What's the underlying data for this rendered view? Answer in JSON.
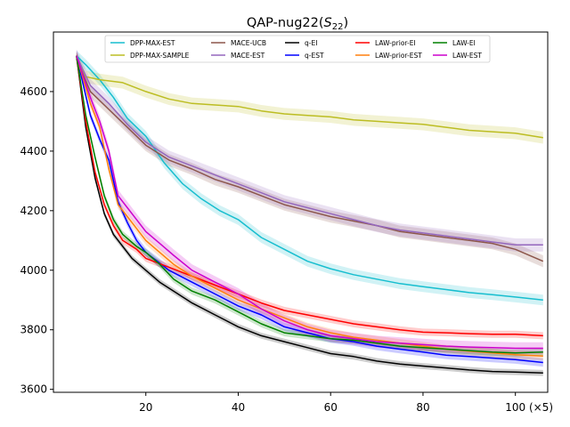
{
  "chart_data": {
    "type": "line",
    "title_main": "QAP-nug22(",
    "title_sym": "S",
    "title_sub": "22",
    "title_close": ")",
    "x_multiplier": "(×5)",
    "xlim": [
      0,
      107
    ],
    "ylim": [
      3590,
      4800
    ],
    "x_ticks": [
      20,
      40,
      60,
      80,
      100
    ],
    "y_ticks": [
      3600,
      3800,
      4000,
      4200,
      4400,
      4600
    ],
    "legend_loc": "top-center",
    "legend_cols": 5,
    "series": [
      {
        "name": "DPP-MAX-EST",
        "color": "#17becf",
        "band": 18,
        "points": [
          [
            5,
            4720
          ],
          [
            7,
            4690
          ],
          [
            10,
            4640
          ],
          [
            13,
            4580
          ],
          [
            16,
            4510
          ],
          [
            20,
            4450
          ],
          [
            24,
            4360
          ],
          [
            28,
            4290
          ],
          [
            32,
            4240
          ],
          [
            36,
            4200
          ],
          [
            40,
            4170
          ],
          [
            45,
            4110
          ],
          [
            50,
            4070
          ],
          [
            55,
            4030
          ],
          [
            60,
            4005
          ],
          [
            65,
            3985
          ],
          [
            70,
            3970
          ],
          [
            75,
            3955
          ],
          [
            80,
            3945
          ],
          [
            85,
            3935
          ],
          [
            90,
            3925
          ],
          [
            95,
            3918
          ],
          [
            100,
            3910
          ],
          [
            106,
            3900
          ]
        ]
      },
      {
        "name": "DPP-MAX-SAMPLE",
        "color": "#bcbd22",
        "band": 20,
        "points": [
          [
            5,
            4715
          ],
          [
            7,
            4650
          ],
          [
            10,
            4640
          ],
          [
            15,
            4630
          ],
          [
            20,
            4600
          ],
          [
            25,
            4575
          ],
          [
            30,
            4560
          ],
          [
            35,
            4555
          ],
          [
            40,
            4550
          ],
          [
            45,
            4535
          ],
          [
            50,
            4525
          ],
          [
            55,
            4520
          ],
          [
            60,
            4515
          ],
          [
            65,
            4505
          ],
          [
            70,
            4500
          ],
          [
            75,
            4495
          ],
          [
            80,
            4490
          ],
          [
            85,
            4480
          ],
          [
            90,
            4470
          ],
          [
            95,
            4465
          ],
          [
            100,
            4460
          ],
          [
            106,
            4445
          ]
        ]
      },
      {
        "name": "MACE-UCB",
        "color": "#8c564b",
        "band": 20,
        "points": [
          [
            5,
            4710
          ],
          [
            8,
            4600
          ],
          [
            12,
            4540
          ],
          [
            16,
            4480
          ],
          [
            20,
            4420
          ],
          [
            25,
            4370
          ],
          [
            30,
            4340
          ],
          [
            35,
            4305
          ],
          [
            40,
            4280
          ],
          [
            45,
            4250
          ],
          [
            50,
            4220
          ],
          [
            55,
            4200
          ],
          [
            60,
            4180
          ],
          [
            65,
            4165
          ],
          [
            70,
            4150
          ],
          [
            75,
            4130
          ],
          [
            80,
            4120
          ],
          [
            85,
            4110
          ],
          [
            90,
            4100
          ],
          [
            95,
            4090
          ],
          [
            100,
            4070
          ],
          [
            106,
            4030
          ]
        ]
      },
      {
        "name": "MACE-EST",
        "color": "#9467bd",
        "band": 22,
        "points": [
          [
            5,
            4720
          ],
          [
            8,
            4620
          ],
          [
            12,
            4560
          ],
          [
            16,
            4490
          ],
          [
            20,
            4430
          ],
          [
            25,
            4380
          ],
          [
            30,
            4350
          ],
          [
            35,
            4320
          ],
          [
            40,
            4290
          ],
          [
            45,
            4260
          ],
          [
            50,
            4230
          ],
          [
            55,
            4210
          ],
          [
            60,
            4190
          ],
          [
            65,
            4170
          ],
          [
            70,
            4150
          ],
          [
            75,
            4135
          ],
          [
            80,
            4125
          ],
          [
            85,
            4115
          ],
          [
            90,
            4105
          ],
          [
            95,
            4095
          ],
          [
            100,
            4085
          ],
          [
            106,
            4085
          ]
        ]
      },
      {
        "name": "q-EI",
        "color": "#000000",
        "band": 10,
        "points": [
          [
            5,
            4720
          ],
          [
            7,
            4480
          ],
          [
            9,
            4310
          ],
          [
            11,
            4190
          ],
          [
            13,
            4120
          ],
          [
            15,
            4080
          ],
          [
            17,
            4040
          ],
          [
            20,
            4000
          ],
          [
            23,
            3960
          ],
          [
            26,
            3930
          ],
          [
            30,
            3890
          ],
          [
            35,
            3850
          ],
          [
            40,
            3810
          ],
          [
            45,
            3780
          ],
          [
            50,
            3760
          ],
          [
            55,
            3740
          ],
          [
            60,
            3720
          ],
          [
            65,
            3710
          ],
          [
            70,
            3695
          ],
          [
            75,
            3685
          ],
          [
            80,
            3678
          ],
          [
            85,
            3672
          ],
          [
            90,
            3665
          ],
          [
            95,
            3660
          ],
          [
            100,
            3658
          ],
          [
            106,
            3655
          ]
        ]
      },
      {
        "name": "q-EST",
        "color": "#0000ff",
        "band": 14,
        "points": [
          [
            5,
            4720
          ],
          [
            8,
            4520
          ],
          [
            10,
            4440
          ],
          [
            12,
            4370
          ],
          [
            14,
            4230
          ],
          [
            16,
            4160
          ],
          [
            18,
            4100
          ],
          [
            20,
            4060
          ],
          [
            25,
            4000
          ],
          [
            30,
            3960
          ],
          [
            35,
            3920
          ],
          [
            40,
            3880
          ],
          [
            45,
            3850
          ],
          [
            50,
            3810
          ],
          [
            55,
            3790
          ],
          [
            60,
            3770
          ],
          [
            65,
            3760
          ],
          [
            70,
            3745
          ],
          [
            75,
            3735
          ],
          [
            80,
            3725
          ],
          [
            85,
            3715
          ],
          [
            90,
            3710
          ],
          [
            95,
            3705
          ],
          [
            100,
            3700
          ],
          [
            106,
            3690
          ]
        ]
      },
      {
        "name": "LAW-prior-EI",
        "color": "#ff0000",
        "band": 12,
        "points": [
          [
            5,
            4720
          ],
          [
            7,
            4500
          ],
          [
            9,
            4330
          ],
          [
            11,
            4220
          ],
          [
            13,
            4150
          ],
          [
            15,
            4100
          ],
          [
            18,
            4070
          ],
          [
            20,
            4040
          ],
          [
            25,
            4010
          ],
          [
            30,
            3980
          ],
          [
            35,
            3950
          ],
          [
            40,
            3920
          ],
          [
            45,
            3890
          ],
          [
            50,
            3865
          ],
          [
            55,
            3850
          ],
          [
            60,
            3835
          ],
          [
            65,
            3820
          ],
          [
            70,
            3810
          ],
          [
            75,
            3800
          ],
          [
            80,
            3792
          ],
          [
            85,
            3790
          ],
          [
            90,
            3787
          ],
          [
            95,
            3785
          ],
          [
            100,
            3785
          ],
          [
            106,
            3780
          ]
        ]
      },
      {
        "name": "LAW-prior-EST",
        "color": "#ff7f0e",
        "band": 14,
        "points": [
          [
            5,
            4720
          ],
          [
            8,
            4560
          ],
          [
            10,
            4480
          ],
          [
            12,
            4340
          ],
          [
            14,
            4220
          ],
          [
            16,
            4180
          ],
          [
            18,
            4140
          ],
          [
            20,
            4100
          ],
          [
            23,
            4060
          ],
          [
            26,
            4020
          ],
          [
            30,
            3980
          ],
          [
            35,
            3940
          ],
          [
            40,
            3900
          ],
          [
            45,
            3870
          ],
          [
            50,
            3840
          ],
          [
            55,
            3810
          ],
          [
            60,
            3790
          ],
          [
            65,
            3775
          ],
          [
            70,
            3765
          ],
          [
            75,
            3755
          ],
          [
            80,
            3745
          ],
          [
            85,
            3735
          ],
          [
            90,
            3728
          ],
          [
            95,
            3722
          ],
          [
            100,
            3716
          ],
          [
            106,
            3712
          ]
        ]
      },
      {
        "name": "LAW-EI",
        "color": "#008000",
        "band": 12,
        "points": [
          [
            5,
            4720
          ],
          [
            7,
            4520
          ],
          [
            9,
            4380
          ],
          [
            11,
            4250
          ],
          [
            13,
            4170
          ],
          [
            15,
            4120
          ],
          [
            18,
            4080
          ],
          [
            20,
            4060
          ],
          [
            23,
            4020
          ],
          [
            26,
            3970
          ],
          [
            30,
            3930
          ],
          [
            35,
            3900
          ],
          [
            40,
            3860
          ],
          [
            45,
            3820
          ],
          [
            50,
            3790
          ],
          [
            55,
            3780
          ],
          [
            60,
            3770
          ],
          [
            65,
            3765
          ],
          [
            70,
            3755
          ],
          [
            75,
            3745
          ],
          [
            80,
            3740
          ],
          [
            85,
            3735
          ],
          [
            90,
            3730
          ],
          [
            95,
            3725
          ],
          [
            100,
            3722
          ],
          [
            106,
            3725
          ]
        ]
      },
      {
        "name": "LAW-EST",
        "color": "#cc00cc",
        "band": 20,
        "points": [
          [
            5,
            4720
          ],
          [
            8,
            4580
          ],
          [
            10,
            4500
          ],
          [
            12,
            4400
          ],
          [
            14,
            4250
          ],
          [
            16,
            4210
          ],
          [
            18,
            4170
          ],
          [
            20,
            4130
          ],
          [
            23,
            4090
          ],
          [
            26,
            4050
          ],
          [
            30,
            4000
          ],
          [
            35,
            3960
          ],
          [
            40,
            3920
          ],
          [
            45,
            3870
          ],
          [
            50,
            3830
          ],
          [
            55,
            3800
          ],
          [
            60,
            3780
          ],
          [
            65,
            3770
          ],
          [
            70,
            3760
          ],
          [
            75,
            3755
          ],
          [
            80,
            3750
          ],
          [
            85,
            3745
          ],
          [
            90,
            3742
          ],
          [
            95,
            3740
          ],
          [
            100,
            3738
          ],
          [
            106,
            3738
          ]
        ]
      }
    ]
  }
}
